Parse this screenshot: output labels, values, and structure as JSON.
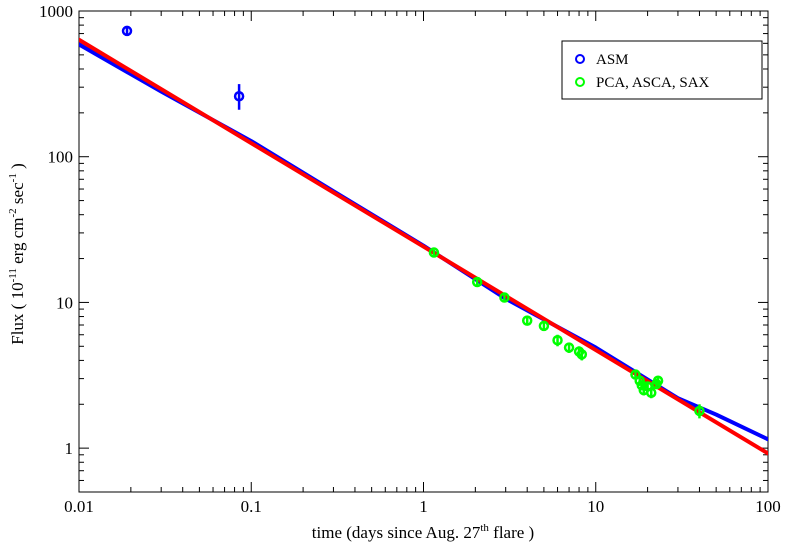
{
  "chart_data": {
    "type": "scatter",
    "title": "",
    "xscale": "log",
    "yscale": "log",
    "xlim": [
      0.01,
      100
    ],
    "ylim": [
      0.5,
      1000
    ],
    "grid": false,
    "legend_position": "top-right",
    "x_ticks": [
      "0.01",
      "0.1",
      "1",
      "10",
      "100"
    ],
    "y_ticks": [
      "1",
      "10",
      "100",
      "1000"
    ],
    "xlabel": {
      "pre": "time (days since Aug. 27",
      "sup": "th",
      "post": " flare )"
    },
    "ylabel": {
      "p1": "Flux ( 10",
      "s1": "-11",
      "p2": " erg cm",
      "s2": "-2",
      "p3": " sec",
      "s3": "-1",
      "p4": " )"
    },
    "series": [
      {
        "name": "ASM",
        "color": "#0000ff",
        "points": [
          {
            "x": 0.019,
            "y": 730,
            "ylo": 690,
            "yhi": 775
          },
          {
            "x": 0.085,
            "y": 260,
            "ylo": 210,
            "yhi": 315
          }
        ]
      },
      {
        "name": "PCA, ASCA, SAX",
        "color": "#00ff00",
        "points": [
          {
            "x": 1.15,
            "y": 22,
            "ylo": 21,
            "yhi": 23
          },
          {
            "x": 2.05,
            "y": 13.8,
            "ylo": 13,
            "yhi": 14.8
          },
          {
            "x": 2.95,
            "y": 10.8,
            "ylo": 10,
            "yhi": 11.7
          },
          {
            "x": 4.0,
            "y": 7.5,
            "ylo": 7.0,
            "yhi": 8.0
          },
          {
            "x": 5.0,
            "y": 6.9,
            "ylo": 6.4,
            "yhi": 7.4
          },
          {
            "x": 6.0,
            "y": 5.5,
            "ylo": 5.0,
            "yhi": 6.0
          },
          {
            "x": 7.0,
            "y": 4.9,
            "ylo": 4.5,
            "yhi": 5.3
          },
          {
            "x": 8.0,
            "y": 4.6,
            "ylo": 4.2,
            "yhi": 5.0
          },
          {
            "x": 8.3,
            "y": 4.4,
            "ylo": 4.0,
            "yhi": 4.8
          },
          {
            "x": 17.0,
            "y": 3.2,
            "ylo": 3.0,
            "yhi": 3.4
          },
          {
            "x": 18.0,
            "y": 2.9,
            "ylo": 2.7,
            "yhi": 3.1
          },
          {
            "x": 18.5,
            "y": 2.7,
            "ylo": 2.5,
            "yhi": 2.9
          },
          {
            "x": 19.0,
            "y": 2.5,
            "ylo": 2.3,
            "yhi": 2.7
          },
          {
            "x": 20.0,
            "y": 2.65,
            "ylo": 2.45,
            "yhi": 2.85
          },
          {
            "x": 21.0,
            "y": 2.4,
            "ylo": 2.2,
            "yhi": 2.6
          },
          {
            "x": 22.5,
            "y": 2.75,
            "ylo": 2.55,
            "yhi": 2.95
          },
          {
            "x": 23.0,
            "y": 2.9,
            "ylo": 2.7,
            "yhi": 3.1
          },
          {
            "x": 40.0,
            "y": 1.8,
            "ylo": 1.6,
            "yhi": 2.0
          }
        ]
      }
    ],
    "fit_lines": [
      {
        "color": "#0000ff",
        "points": [
          [
            0.01,
            590
          ],
          [
            0.03,
            280
          ],
          [
            0.1,
            128
          ],
          [
            0.3,
            58
          ],
          [
            1,
            24.5
          ],
          [
            3,
            10.6
          ],
          [
            10,
            4.9
          ],
          [
            30,
            2.2
          ],
          [
            50,
            1.7
          ],
          [
            100,
            1.15
          ]
        ]
      },
      {
        "color": "#ff0000",
        "points": [
          [
            0.01,
            635
          ],
          [
            100,
            0.92
          ]
        ]
      }
    ]
  }
}
